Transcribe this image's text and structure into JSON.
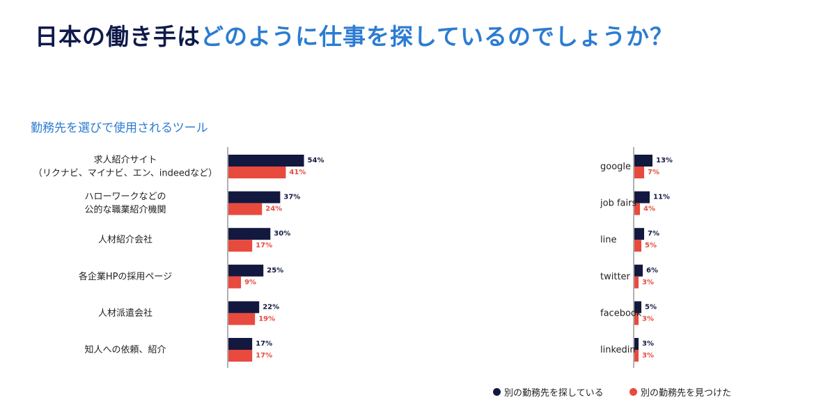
{
  "header": {
    "title_part1": "日本の働き手は",
    "title_part2": "どのように仕事を探しているのでしょうか？"
  },
  "colors": {
    "title_dark": "#0e1a4a",
    "title_accent": "#2c7cd1",
    "subtitle": "#2c7cd1",
    "searching": "#13183f",
    "found": "#e84a3e",
    "axis": "#b0b0b0"
  },
  "subtitle": "勤務先を選びで使用されるツール",
  "chart_data": [
    {
      "type": "bar",
      "orientation": "horizontal",
      "categories": [
        [
          "求人紹介サイト",
          "（リクナビ、マイナビ、エン、indeedなど）"
        ],
        [
          "ハローワークなどの",
          "公的な職業紹介機関"
        ],
        [
          "人材紹介会社"
        ],
        [
          "各企業HPの採用ページ"
        ],
        [
          "人材派遣会社"
        ],
        [
          "知人への依頼、紹介"
        ]
      ],
      "series": [
        {
          "name": "別の勤務先を探している",
          "values": [
            54,
            37,
            30,
            25,
            22,
            17
          ],
          "labels": [
            "54%",
            "37%",
            "30%",
            "25%",
            "22%",
            "17%"
          ]
        },
        {
          "name": "別の勤務先を見つけた",
          "values": [
            41,
            24,
            17,
            9,
            19,
            17
          ],
          "labels": [
            "41%",
            "24%",
            "17%",
            "9%",
            "19%",
            "17%"
          ]
        }
      ],
      "unit": "%",
      "xlim": [
        0,
        100
      ],
      "grid": false
    },
    {
      "type": "bar",
      "orientation": "horizontal",
      "categories": [
        [
          "google"
        ],
        [
          "job fairs"
        ],
        [
          "line"
        ],
        [
          "twitter"
        ],
        [
          "facebook"
        ],
        [
          "linkedin"
        ]
      ],
      "series": [
        {
          "name": "別の勤務先を探している",
          "values": [
            13,
            11,
            7,
            6,
            5,
            3
          ],
          "labels": [
            "13%",
            "11%",
            "7%",
            "6%",
            "5%",
            "3%"
          ]
        },
        {
          "name": "別の勤務先を見つけた",
          "values": [
            7,
            4,
            5,
            3,
            3,
            3
          ],
          "labels": [
            "7%",
            "4%",
            "5%",
            "3%",
            "3%",
            "3%"
          ]
        }
      ],
      "unit": "%",
      "xlim": [
        0,
        100
      ],
      "grid": false
    }
  ],
  "legend": {
    "placement": "bottom-right",
    "items": [
      {
        "label": "別の勤務先を探している"
      },
      {
        "label": "別の勤務先を見つけた"
      }
    ]
  }
}
